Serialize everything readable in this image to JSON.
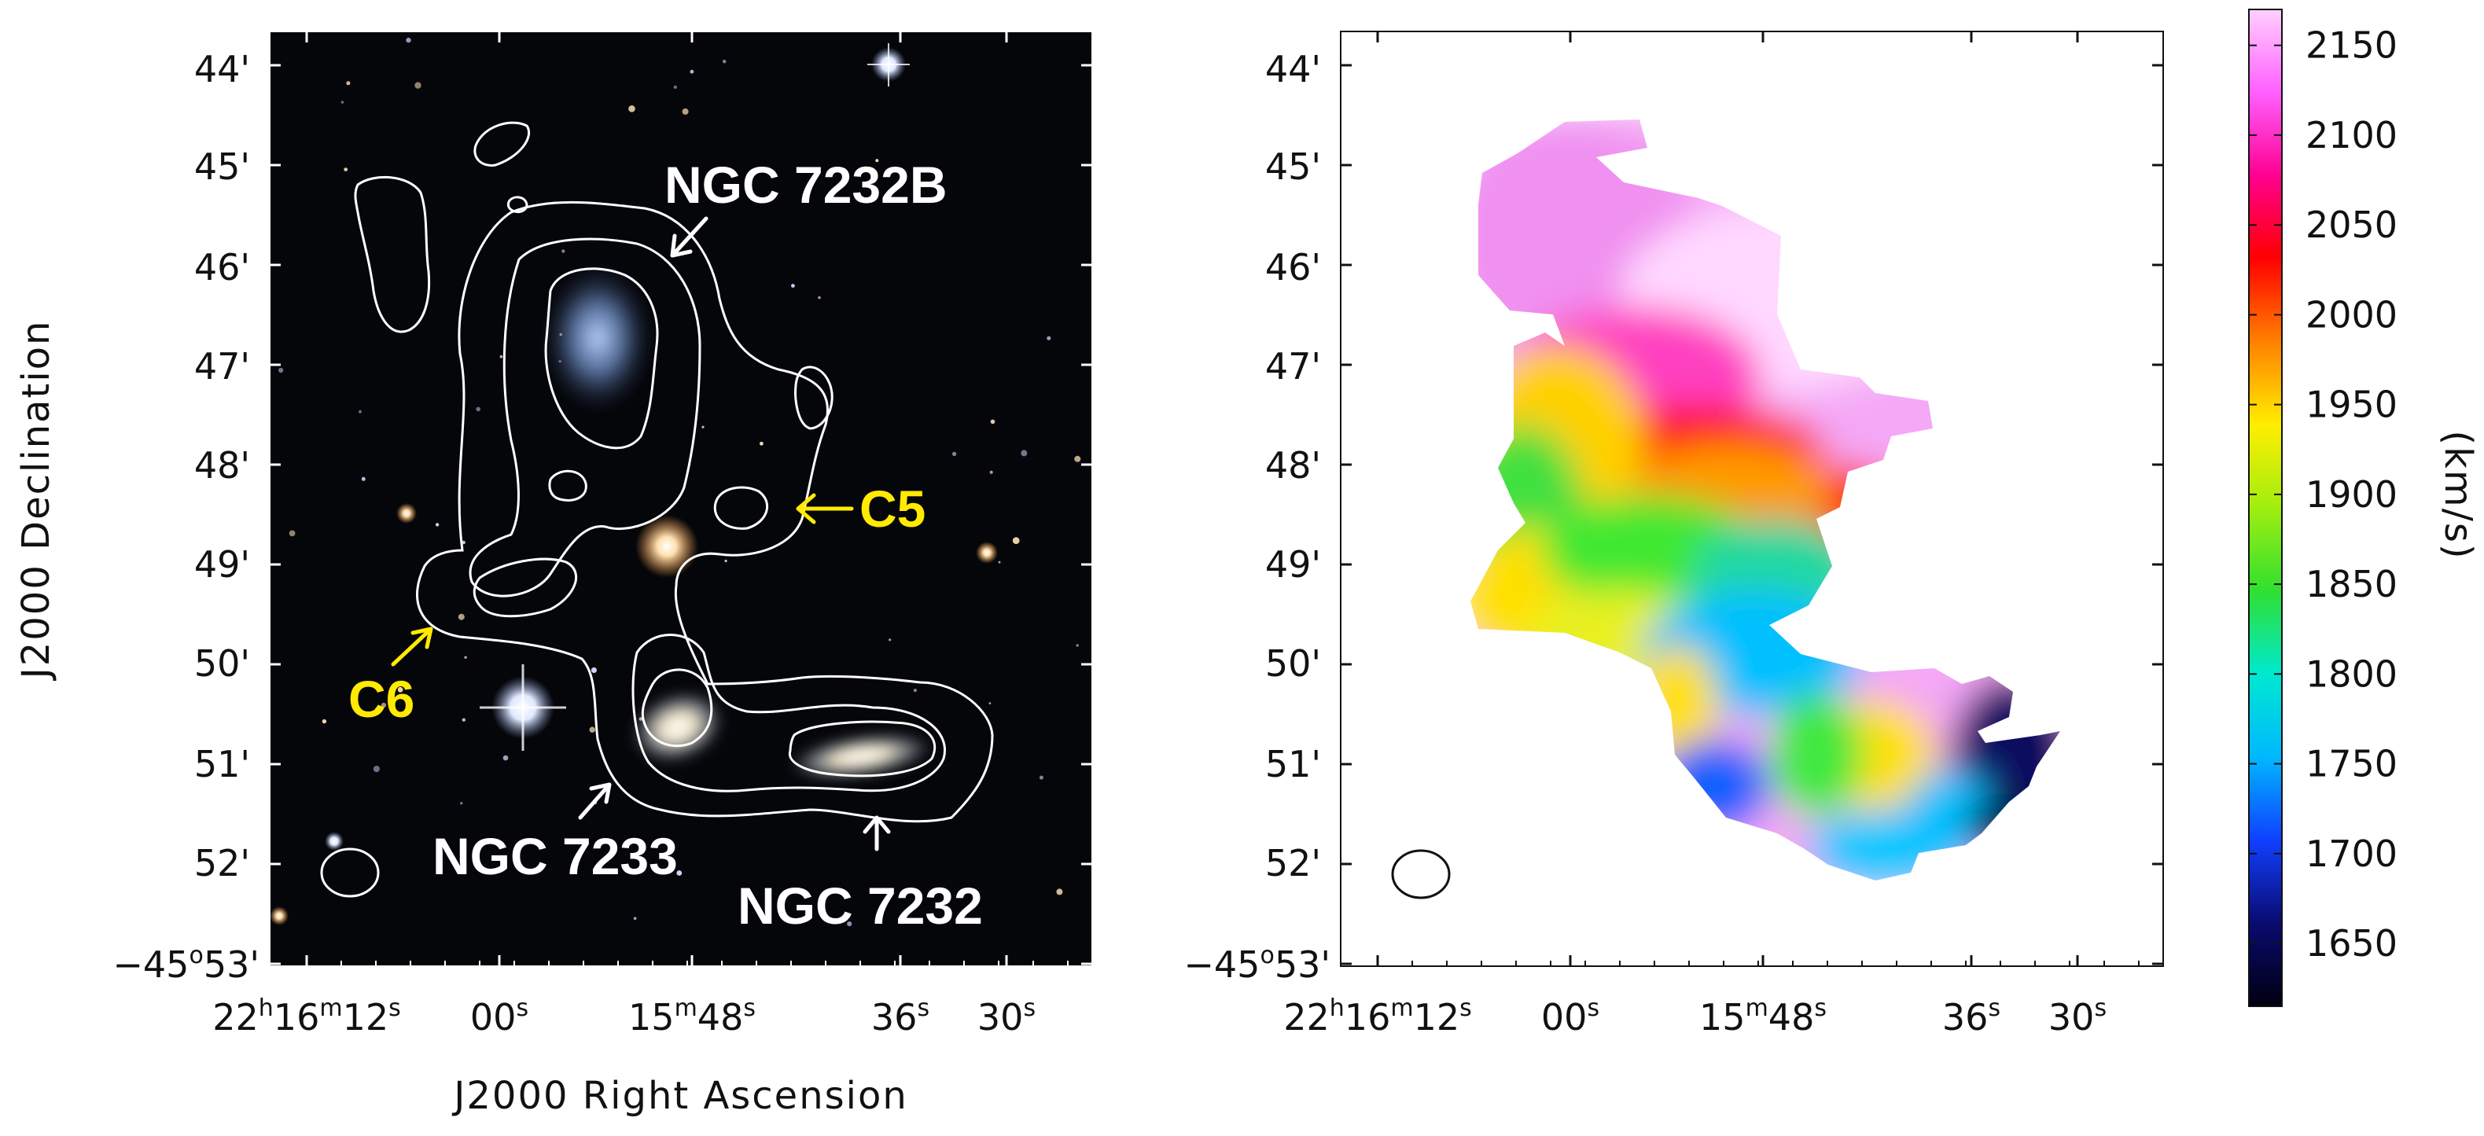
{
  "figure": {
    "left_panel": {
      "ra_ticks": [
        {
          "h": "22",
          "h_unit": "h",
          "m": "16",
          "m_unit": "m",
          "s": "12",
          "s_unit": "s"
        },
        {
          "s": "00",
          "s_unit": "s"
        },
        {
          "m": "15",
          "m_unit": "m",
          "s": "48",
          "s_unit": "s"
        },
        {
          "s": "36",
          "s_unit": "s"
        },
        {
          "s": "30",
          "s_unit": "s"
        }
      ],
      "dec_ticks": [
        "44'",
        "45'",
        "46'",
        "47'",
        "48'",
        "49'",
        "50'",
        "51'",
        "52'"
      ],
      "dec_first_tick": {
        "deg": "−45",
        "deg_unit": "o",
        "min": "53'"
      },
      "xlabel": "J2000 Right Ascension",
      "ylabel": "J2000 Declination",
      "annotations": {
        "ngc7232b": "NGC 7232B",
        "c5": "C5",
        "c6": "C6",
        "ngc7233": "NGC 7233",
        "ngc7232": "NGC 7232"
      },
      "colors": {
        "background": "#05060a",
        "contour": "#ffffff",
        "label_white": "#ffffff",
        "label_yellow": "#ffea00"
      }
    },
    "right_panel": {
      "ra_ticks": [
        {
          "h": "22",
          "h_unit": "h",
          "m": "16",
          "m_unit": "m",
          "s": "12",
          "s_unit": "s"
        },
        {
          "s": "00",
          "s_unit": "s"
        },
        {
          "m": "15",
          "m_unit": "m",
          "s": "48",
          "s_unit": "s"
        },
        {
          "s": "36",
          "s_unit": "s"
        },
        {
          "s": "30",
          "s_unit": "s"
        }
      ],
      "dec_ticks": [
        "44'",
        "45'",
        "46'",
        "47'",
        "48'",
        "49'",
        "50'",
        "51'",
        "52'"
      ],
      "dec_first_tick": {
        "deg": "−45",
        "deg_unit": "o",
        "min": "53'"
      }
    },
    "colorbar": {
      "label": "(km/s)",
      "ticks": [
        "2150",
        "2100",
        "2050",
        "2000",
        "1950",
        "1900",
        "1850",
        "1800",
        "1750",
        "1700",
        "1650"
      ],
      "range": [
        1615,
        2170
      ],
      "colormap": [
        "#000010",
        "#0a0a70",
        "#1040ff",
        "#00b8ff",
        "#00e8d0",
        "#30e030",
        "#a0ee10",
        "#ffee00",
        "#ff8000",
        "#ff0000",
        "#ff0090",
        "#ff60ff",
        "#ffd0ff"
      ]
    }
  }
}
